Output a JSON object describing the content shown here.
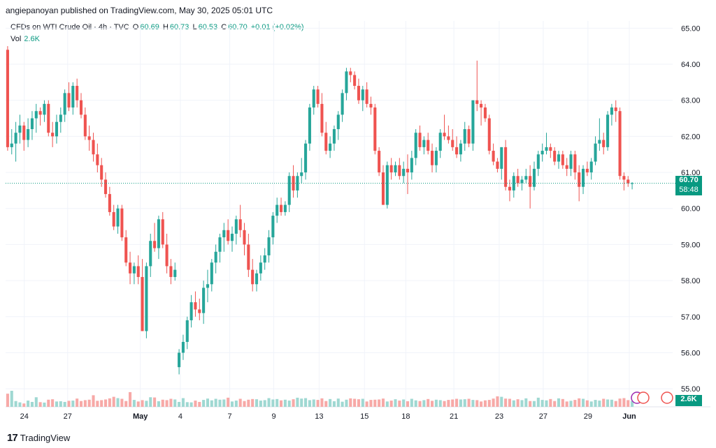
{
  "header": {
    "published": "angiepanoyan published on TradingView.com, May 30, 2025 05:01 UTC"
  },
  "legend": {
    "symbol": "CFDs on WTI Crude Oil · 4h · TVC",
    "o_label": "O",
    "o": "60.69",
    "h_label": "H",
    "h": "60.73",
    "l_label": "L",
    "l": "60.53",
    "c_label": "C",
    "c": "60.70",
    "change": "+0.01 (+0.02%)"
  },
  "volume": {
    "label": "Vol",
    "value": "2.6K"
  },
  "price_tag": {
    "price": "60.70",
    "countdown": "58:48"
  },
  "volume_tag": "2.6K",
  "footer": {
    "logo": "17",
    "brand": "TradingView"
  },
  "colors": {
    "up": "#26a69a",
    "down": "#ef5350",
    "up_vol": "#9fd8d2",
    "down_vol": "#f7a9a7"
  },
  "chart_data": {
    "type": "candlestick",
    "timeframe": "4h",
    "ylim": [
      54.5,
      65.2
    ],
    "yticks": [
      "65.00",
      "64.00",
      "63.00",
      "62.00",
      "61.00",
      "60.00",
      "59.00",
      "58.00",
      "57.00",
      "56.00",
      "55.00"
    ],
    "xticks": [
      "24",
      "27",
      "May",
      "4",
      "7",
      "9",
      "13",
      "15",
      "18",
      "21",
      "23",
      "27",
      "29",
      "Jun"
    ],
    "last_price": 60.7,
    "ohlc": [
      [
        64.4,
        64.5,
        61.6,
        61.7
      ],
      [
        61.7,
        62.2,
        61.5,
        61.8
      ],
      [
        61.8,
        62.4,
        61.3,
        62.1
      ],
      [
        62.1,
        62.6,
        61.8,
        62.3
      ],
      [
        62.3,
        62.4,
        61.6,
        61.9
      ],
      [
        61.9,
        62.5,
        61.7,
        62.2
      ],
      [
        62.2,
        62.7,
        61.9,
        62.5
      ],
      [
        62.5,
        62.9,
        62.1,
        62.7
      ],
      [
        62.7,
        62.8,
        62.3,
        62.6
      ],
      [
        62.6,
        63.0,
        62.4,
        62.9
      ],
      [
        62.9,
        63.0,
        62.0,
        62.1
      ],
      [
        62.1,
        62.4,
        61.7,
        62.0
      ],
      [
        62.0,
        62.6,
        61.8,
        62.4
      ],
      [
        62.4,
        62.8,
        62.1,
        62.6
      ],
      [
        62.6,
        63.3,
        62.4,
        63.2
      ],
      [
        63.2,
        63.5,
        62.7,
        62.8
      ],
      [
        62.8,
        63.5,
        62.6,
        63.4
      ],
      [
        63.4,
        63.6,
        62.8,
        63.0
      ],
      [
        63.0,
        63.2,
        62.5,
        62.6
      ],
      [
        62.6,
        62.8,
        61.9,
        62.0
      ],
      [
        62.0,
        62.3,
        61.6,
        61.9
      ],
      [
        61.9,
        62.1,
        61.3,
        61.5
      ],
      [
        61.5,
        61.8,
        61.0,
        61.2
      ],
      [
        61.2,
        61.4,
        60.6,
        60.8
      ],
      [
        60.8,
        61.0,
        60.3,
        60.4
      ],
      [
        60.4,
        60.6,
        59.8,
        59.9
      ],
      [
        59.9,
        60.1,
        59.4,
        59.5
      ],
      [
        59.5,
        60.1,
        59.3,
        60.0
      ],
      [
        60.0,
        60.1,
        59.1,
        59.2
      ],
      [
        59.2,
        59.4,
        58.4,
        58.5
      ],
      [
        58.5,
        58.8,
        57.9,
        58.2
      ],
      [
        58.2,
        58.5,
        57.9,
        58.4
      ],
      [
        58.4,
        58.7,
        57.9,
        58.1
      ],
      [
        58.1,
        58.6,
        56.6,
        56.6
      ],
      [
        56.6,
        58.5,
        56.4,
        58.4
      ],
      [
        58.4,
        59.3,
        58.1,
        59.1
      ],
      [
        59.1,
        59.6,
        58.8,
        58.9
      ],
      [
        58.9,
        59.8,
        58.6,
        59.7
      ],
      [
        59.7,
        59.9,
        58.9,
        59.0
      ],
      [
        59.0,
        59.3,
        58.2,
        58.4
      ],
      [
        58.4,
        58.6,
        57.9,
        58.1
      ],
      [
        58.1,
        58.5,
        58.0,
        58.3
      ],
      [
        55.6,
        56.1,
        55.4,
        56.0
      ],
      [
        56.0,
        56.5,
        55.8,
        56.3
      ],
      [
        56.3,
        57.0,
        56.1,
        56.9
      ],
      [
        56.9,
        57.6,
        56.7,
        57.4
      ],
      [
        57.4,
        57.7,
        57.0,
        57.2
      ],
      [
        57.2,
        57.5,
        56.9,
        57.1
      ],
      [
        57.1,
        58.0,
        56.8,
        57.8
      ],
      [
        57.8,
        58.3,
        57.4,
        57.9
      ],
      [
        57.9,
        58.6,
        57.7,
        58.5
      ],
      [
        58.5,
        59.0,
        58.2,
        58.8
      ],
      [
        58.8,
        59.3,
        58.5,
        59.2
      ],
      [
        59.2,
        59.6,
        58.8,
        59.4
      ],
      [
        59.4,
        59.7,
        59.0,
        59.1
      ],
      [
        59.1,
        59.5,
        58.8,
        59.3
      ],
      [
        59.3,
        59.8,
        59.0,
        59.7
      ],
      [
        59.7,
        60.1,
        59.2,
        59.4
      ],
      [
        59.4,
        59.6,
        58.7,
        59.0
      ],
      [
        59.0,
        59.3,
        58.1,
        58.3
      ],
      [
        58.3,
        58.6,
        57.7,
        57.9
      ],
      [
        57.9,
        58.3,
        57.7,
        58.2
      ],
      [
        58.2,
        58.7,
        58.0,
        58.5
      ],
      [
        58.5,
        58.9,
        58.3,
        58.7
      ],
      [
        58.7,
        59.4,
        58.5,
        59.2
      ],
      [
        59.2,
        59.9,
        59.0,
        59.8
      ],
      [
        59.8,
        60.3,
        59.6,
        60.1
      ],
      [
        60.1,
        60.3,
        59.8,
        59.9
      ],
      [
        59.9,
        60.2,
        59.8,
        60.1
      ],
      [
        60.1,
        61.0,
        59.9,
        60.9
      ],
      [
        60.9,
        61.2,
        60.3,
        60.5
      ],
      [
        60.5,
        61.0,
        60.3,
        60.9
      ],
      [
        60.9,
        61.4,
        60.7,
        61.0
      ],
      [
        61.0,
        61.9,
        60.8,
        61.8
      ],
      [
        61.8,
        62.9,
        61.6,
        62.8
      ],
      [
        62.8,
        63.4,
        62.6,
        63.3
      ],
      [
        63.3,
        63.4,
        62.8,
        62.9
      ],
      [
        62.9,
        63.2,
        62.0,
        62.1
      ],
      [
        62.1,
        62.4,
        61.5,
        61.6
      ],
      [
        61.6,
        62.0,
        61.4,
        61.8
      ],
      [
        61.8,
        62.3,
        61.6,
        62.2
      ],
      [
        62.2,
        62.7,
        61.9,
        62.6
      ],
      [
        62.6,
        63.3,
        62.4,
        63.2
      ],
      [
        63.2,
        63.9,
        63.0,
        63.8
      ],
      [
        63.8,
        63.9,
        63.5,
        63.7
      ],
      [
        63.7,
        63.8,
        63.3,
        63.4
      ],
      [
        63.4,
        63.6,
        62.9,
        63.0
      ],
      [
        63.0,
        63.4,
        62.7,
        63.3
      ],
      [
        63.3,
        63.5,
        62.8,
        62.9
      ],
      [
        62.9,
        63.1,
        62.6,
        62.8
      ],
      [
        62.8,
        62.9,
        61.5,
        61.6
      ],
      [
        61.6,
        61.7,
        60.9,
        61.0
      ],
      [
        61.0,
        61.2,
        60.1,
        60.1
      ],
      [
        60.1,
        61.3,
        60.0,
        61.2
      ],
      [
        61.2,
        61.4,
        60.8,
        61.0
      ],
      [
        61.0,
        61.3,
        60.9,
        61.2
      ],
      [
        61.2,
        61.4,
        60.8,
        60.9
      ],
      [
        60.9,
        61.3,
        60.7,
        61.1
      ],
      [
        61.1,
        61.5,
        60.4,
        61.0
      ],
      [
        61.0,
        61.6,
        60.8,
        61.4
      ],
      [
        61.4,
        62.2,
        61.2,
        62.1
      ],
      [
        62.1,
        62.3,
        61.6,
        61.7
      ],
      [
        61.7,
        62.0,
        61.5,
        61.9
      ],
      [
        61.9,
        62.1,
        61.5,
        61.6
      ],
      [
        61.6,
        61.8,
        61.0,
        61.2
      ],
      [
        61.2,
        61.7,
        61.0,
        61.6
      ],
      [
        61.6,
        62.2,
        61.4,
        62.1
      ],
      [
        62.1,
        62.6,
        61.9,
        62.0
      ],
      [
        62.0,
        62.3,
        61.8,
        61.9
      ],
      [
        61.9,
        62.2,
        61.6,
        61.7
      ],
      [
        61.7,
        62.0,
        61.4,
        61.5
      ],
      [
        61.5,
        61.9,
        61.3,
        61.8
      ],
      [
        61.8,
        62.4,
        61.6,
        62.2
      ],
      [
        62.2,
        62.3,
        61.7,
        61.8
      ],
      [
        61.8,
        63.0,
        61.6,
        63.0
      ],
      [
        63.0,
        64.1,
        62.7,
        62.9
      ],
      [
        62.9,
        63.0,
        62.3,
        62.8
      ],
      [
        62.8,
        62.9,
        62.4,
        62.5
      ],
      [
        62.5,
        62.6,
        61.5,
        61.6
      ],
      [
        61.6,
        61.8,
        61.2,
        61.3
      ],
      [
        61.3,
        61.4,
        61.0,
        61.1
      ],
      [
        61.1,
        61.7,
        60.8,
        61.7
      ],
      [
        61.7,
        61.9,
        60.5,
        60.6
      ],
      [
        60.6,
        60.8,
        60.2,
        60.5
      ],
      [
        60.5,
        61.0,
        60.3,
        60.9
      ],
      [
        60.9,
        61.1,
        60.6,
        60.7
      ],
      [
        60.7,
        60.9,
        60.5,
        60.8
      ],
      [
        60.8,
        61.1,
        60.7,
        60.9
      ],
      [
        60.9,
        61.2,
        60.0,
        60.6
      ],
      [
        60.6,
        61.3,
        60.5,
        61.1
      ],
      [
        61.1,
        61.6,
        60.9,
        61.5
      ],
      [
        61.5,
        61.8,
        61.3,
        61.6
      ],
      [
        61.6,
        62.1,
        61.5,
        61.7
      ],
      [
        61.7,
        61.8,
        61.4,
        61.6
      ],
      [
        61.6,
        61.7,
        61.2,
        61.3
      ],
      [
        61.3,
        61.6,
        61.1,
        61.5
      ],
      [
        61.5,
        61.6,
        61.1,
        61.2
      ],
      [
        61.2,
        61.4,
        60.9,
        61.1
      ],
      [
        61.1,
        61.6,
        60.9,
        61.5
      ],
      [
        61.5,
        61.6,
        60.8,
        61.0
      ],
      [
        61.0,
        61.2,
        60.2,
        60.6
      ],
      [
        60.6,
        61.2,
        60.4,
        61.1
      ],
      [
        61.1,
        61.3,
        60.9,
        61.0
      ],
      [
        61.0,
        61.4,
        60.8,
        61.3
      ],
      [
        61.3,
        62.0,
        61.2,
        61.8
      ],
      [
        61.8,
        62.5,
        61.6,
        61.9
      ],
      [
        61.9,
        62.1,
        61.5,
        61.7
      ],
      [
        61.7,
        62.7,
        61.6,
        62.6
      ],
      [
        62.6,
        62.9,
        62.3,
        62.8
      ],
      [
        62.8,
        63.0,
        62.4,
        62.7
      ],
      [
        62.7,
        62.8,
        60.8,
        60.9
      ],
      [
        60.9,
        61.0,
        60.5,
        60.8
      ],
      [
        60.8,
        60.9,
        60.6,
        60.7
      ],
      [
        60.69,
        60.73,
        60.53,
        60.7
      ]
    ],
    "volume": [
      5.9,
      7.2,
      2.6,
      2.0,
      1.5,
      2.8,
      2.2,
      4.3,
      2.1,
      1.9,
      3.2,
      3.4,
      2.4,
      2.5,
      2.2,
      2.7,
      2.8,
      3.7,
      2.6,
      3.0,
      3.2,
      5.2,
      2.7,
      3.0,
      3.3,
      3.8,
      4.5,
      3.9,
      3.6,
      2.6,
      6.6,
      3.1,
      2.4,
      3.0,
      2.7,
      4.3,
      4.2,
      2.5,
      3.2,
      3.0,
      3.6,
      3.3,
      2.2,
      3.9,
      2.1,
      2.0,
      2.8,
      2.2,
      3.1,
      3.7,
      2.9,
      3.6,
      3.2,
      3.3,
      4.1,
      2.4,
      2.8,
      3.6,
      2.6,
      3.2,
      3.5,
      3.4,
      2.8,
      3.0,
      3.9,
      3.3,
      3.5,
      2.9,
      3.2,
      2.8,
      3.4,
      4.1,
      3.7,
      3.9,
      3.0,
      3.3,
      3.1,
      3.8,
      2.6,
      3.5,
      2.5,
      3.7,
      2.3,
      3.2,
      3.8,
      3.6,
      3.4,
      3.6,
      2.4,
      3.1,
      3.2,
      3.3,
      3.7,
      2.4,
      2.8,
      3.4,
      2.8,
      3.3,
      2.5,
      3.6,
      2.9,
      2.6,
      3.0,
      3.5,
      2.7,
      3.2,
      3.0,
      2.6,
      3.1,
      3.3,
      3.6,
      3.3,
      3.4,
      3.6,
      3.1,
      3.0,
      2.4,
      2.9,
      3.1,
      3.7,
      4.7,
      4.5,
      3.7,
      3.6,
      2.9,
      3.4,
      3.0,
      3.8,
      2.6,
      2.6,
      4.1,
      3.1,
      2.9,
      3.5,
      2.6,
      3.8,
      3.5,
      2.4,
      2.7,
      3.1,
      3.8,
      3.6,
      2.9,
      2.4,
      3.1,
      2.8,
      3.6,
      3.3,
      3.2,
      2.6,
      3.7,
      3.9,
      3.0,
      2.6
    ]
  }
}
